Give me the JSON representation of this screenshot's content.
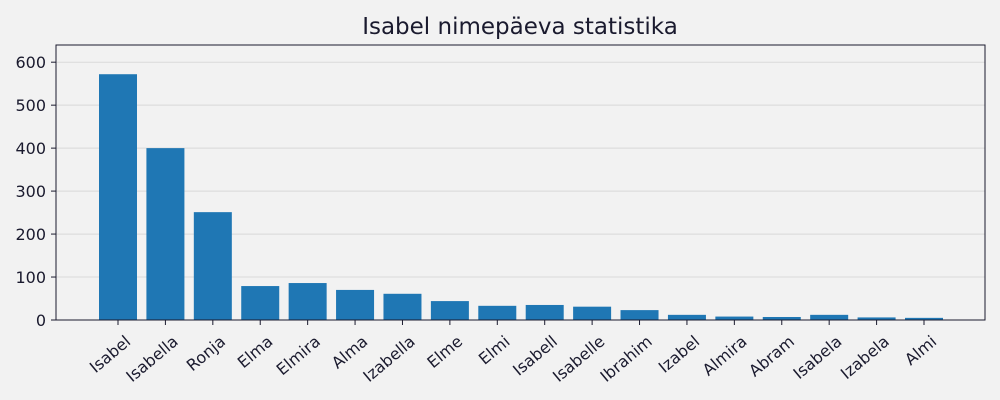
{
  "chart_data": {
    "type": "bar",
    "title": "Isabel nimepäeva statistika",
    "xlabel": "",
    "ylabel": "",
    "categories": [
      "Isabel",
      "Isabella",
      "Ronja",
      "Elma",
      "Elmira",
      "Alma",
      "Izabella",
      "Elme",
      "Elmi",
      "Isabell",
      "Isabelle",
      "Ibrahim",
      "Izabel",
      "Almira",
      "Abram",
      "Isabela",
      "Izabela",
      "Almi"
    ],
    "values": [
      572,
      400,
      251,
      79,
      86,
      70,
      61,
      44,
      33,
      35,
      31,
      23,
      12,
      8,
      7,
      12,
      6,
      5
    ],
    "ylim": [
      0,
      640
    ],
    "yticks": [
      0,
      100,
      200,
      300,
      400,
      500,
      600
    ],
    "grid": true,
    "colors": {
      "bar": "#1f77b4",
      "background": "#f2f2f2",
      "text": "#1a1a2e",
      "grid": "#d9d9d9"
    }
  }
}
